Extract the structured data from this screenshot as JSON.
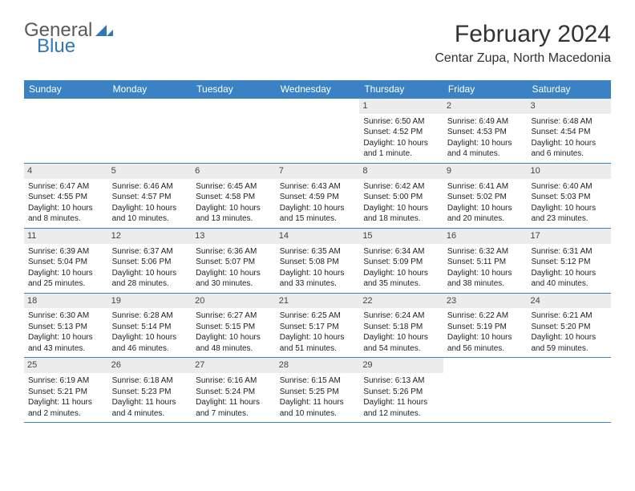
{
  "logo": {
    "text1": "General",
    "text2": "Blue",
    "color_gray": "#5a5a5a",
    "color_blue": "#2f77b7",
    "triangle_color": "#2f77b7"
  },
  "title": "February 2024",
  "location": "Centar Zupa, North Macedonia",
  "header_bg": "#3a82c4",
  "header_text_color": "#ffffff",
  "daynum_bg": "#ececec",
  "border_color": "#3a82c4",
  "day_headers": [
    "Sunday",
    "Monday",
    "Tuesday",
    "Wednesday",
    "Thursday",
    "Friday",
    "Saturday"
  ],
  "weeks": [
    [
      {
        "n": "",
        "sr": "",
        "ss": "",
        "dl": ""
      },
      {
        "n": "",
        "sr": "",
        "ss": "",
        "dl": ""
      },
      {
        "n": "",
        "sr": "",
        "ss": "",
        "dl": ""
      },
      {
        "n": "",
        "sr": "",
        "ss": "",
        "dl": ""
      },
      {
        "n": "1",
        "sr": "Sunrise: 6:50 AM",
        "ss": "Sunset: 4:52 PM",
        "dl": "Daylight: 10 hours and 1 minute."
      },
      {
        "n": "2",
        "sr": "Sunrise: 6:49 AM",
        "ss": "Sunset: 4:53 PM",
        "dl": "Daylight: 10 hours and 4 minutes."
      },
      {
        "n": "3",
        "sr": "Sunrise: 6:48 AM",
        "ss": "Sunset: 4:54 PM",
        "dl": "Daylight: 10 hours and 6 minutes."
      }
    ],
    [
      {
        "n": "4",
        "sr": "Sunrise: 6:47 AM",
        "ss": "Sunset: 4:55 PM",
        "dl": "Daylight: 10 hours and 8 minutes."
      },
      {
        "n": "5",
        "sr": "Sunrise: 6:46 AM",
        "ss": "Sunset: 4:57 PM",
        "dl": "Daylight: 10 hours and 10 minutes."
      },
      {
        "n": "6",
        "sr": "Sunrise: 6:45 AM",
        "ss": "Sunset: 4:58 PM",
        "dl": "Daylight: 10 hours and 13 minutes."
      },
      {
        "n": "7",
        "sr": "Sunrise: 6:43 AM",
        "ss": "Sunset: 4:59 PM",
        "dl": "Daylight: 10 hours and 15 minutes."
      },
      {
        "n": "8",
        "sr": "Sunrise: 6:42 AM",
        "ss": "Sunset: 5:00 PM",
        "dl": "Daylight: 10 hours and 18 minutes."
      },
      {
        "n": "9",
        "sr": "Sunrise: 6:41 AM",
        "ss": "Sunset: 5:02 PM",
        "dl": "Daylight: 10 hours and 20 minutes."
      },
      {
        "n": "10",
        "sr": "Sunrise: 6:40 AM",
        "ss": "Sunset: 5:03 PM",
        "dl": "Daylight: 10 hours and 23 minutes."
      }
    ],
    [
      {
        "n": "11",
        "sr": "Sunrise: 6:39 AM",
        "ss": "Sunset: 5:04 PM",
        "dl": "Daylight: 10 hours and 25 minutes."
      },
      {
        "n": "12",
        "sr": "Sunrise: 6:37 AM",
        "ss": "Sunset: 5:06 PM",
        "dl": "Daylight: 10 hours and 28 minutes."
      },
      {
        "n": "13",
        "sr": "Sunrise: 6:36 AM",
        "ss": "Sunset: 5:07 PM",
        "dl": "Daylight: 10 hours and 30 minutes."
      },
      {
        "n": "14",
        "sr": "Sunrise: 6:35 AM",
        "ss": "Sunset: 5:08 PM",
        "dl": "Daylight: 10 hours and 33 minutes."
      },
      {
        "n": "15",
        "sr": "Sunrise: 6:34 AM",
        "ss": "Sunset: 5:09 PM",
        "dl": "Daylight: 10 hours and 35 minutes."
      },
      {
        "n": "16",
        "sr": "Sunrise: 6:32 AM",
        "ss": "Sunset: 5:11 PM",
        "dl": "Daylight: 10 hours and 38 minutes."
      },
      {
        "n": "17",
        "sr": "Sunrise: 6:31 AM",
        "ss": "Sunset: 5:12 PM",
        "dl": "Daylight: 10 hours and 40 minutes."
      }
    ],
    [
      {
        "n": "18",
        "sr": "Sunrise: 6:30 AM",
        "ss": "Sunset: 5:13 PM",
        "dl": "Daylight: 10 hours and 43 minutes."
      },
      {
        "n": "19",
        "sr": "Sunrise: 6:28 AM",
        "ss": "Sunset: 5:14 PM",
        "dl": "Daylight: 10 hours and 46 minutes."
      },
      {
        "n": "20",
        "sr": "Sunrise: 6:27 AM",
        "ss": "Sunset: 5:15 PM",
        "dl": "Daylight: 10 hours and 48 minutes."
      },
      {
        "n": "21",
        "sr": "Sunrise: 6:25 AM",
        "ss": "Sunset: 5:17 PM",
        "dl": "Daylight: 10 hours and 51 minutes."
      },
      {
        "n": "22",
        "sr": "Sunrise: 6:24 AM",
        "ss": "Sunset: 5:18 PM",
        "dl": "Daylight: 10 hours and 54 minutes."
      },
      {
        "n": "23",
        "sr": "Sunrise: 6:22 AM",
        "ss": "Sunset: 5:19 PM",
        "dl": "Daylight: 10 hours and 56 minutes."
      },
      {
        "n": "24",
        "sr": "Sunrise: 6:21 AM",
        "ss": "Sunset: 5:20 PM",
        "dl": "Daylight: 10 hours and 59 minutes."
      }
    ],
    [
      {
        "n": "25",
        "sr": "Sunrise: 6:19 AM",
        "ss": "Sunset: 5:21 PM",
        "dl": "Daylight: 11 hours and 2 minutes."
      },
      {
        "n": "26",
        "sr": "Sunrise: 6:18 AM",
        "ss": "Sunset: 5:23 PM",
        "dl": "Daylight: 11 hours and 4 minutes."
      },
      {
        "n": "27",
        "sr": "Sunrise: 6:16 AM",
        "ss": "Sunset: 5:24 PM",
        "dl": "Daylight: 11 hours and 7 minutes."
      },
      {
        "n": "28",
        "sr": "Sunrise: 6:15 AM",
        "ss": "Sunset: 5:25 PM",
        "dl": "Daylight: 11 hours and 10 minutes."
      },
      {
        "n": "29",
        "sr": "Sunrise: 6:13 AM",
        "ss": "Sunset: 5:26 PM",
        "dl": "Daylight: 11 hours and 12 minutes."
      },
      {
        "n": "",
        "sr": "",
        "ss": "",
        "dl": ""
      },
      {
        "n": "",
        "sr": "",
        "ss": "",
        "dl": ""
      }
    ]
  ]
}
